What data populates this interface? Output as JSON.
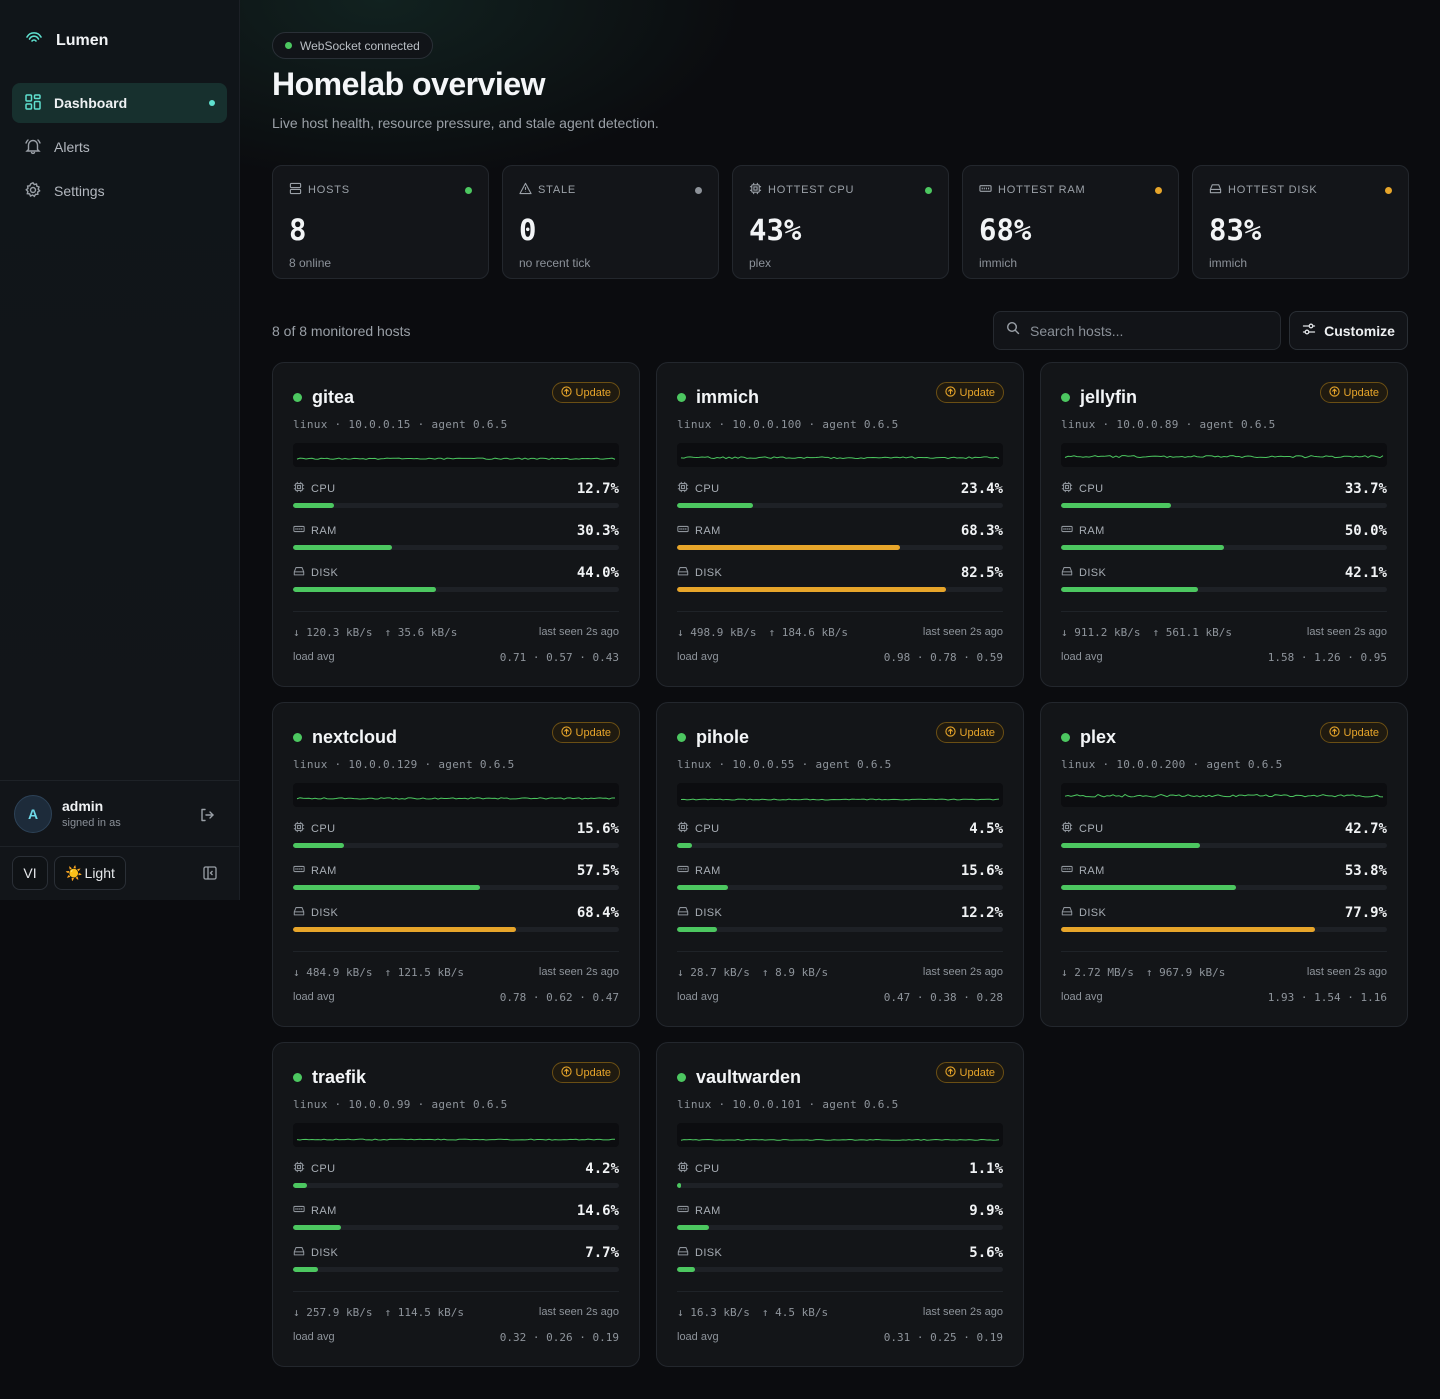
{
  "app": {
    "name": "Lumen"
  },
  "sidebar": {
    "items": [
      {
        "label": "Dashboard",
        "icon": "dashboard-icon",
        "active": true
      },
      {
        "label": "Alerts",
        "icon": "bell-icon",
        "active": false
      },
      {
        "label": "Settings",
        "icon": "gear-icon",
        "active": false
      }
    ],
    "user": {
      "initial": "A",
      "name": "admin",
      "sub": "signed in as"
    },
    "lang": "VI",
    "theme_icon": "☀️",
    "theme_label": "Light"
  },
  "header": {
    "ws_status": "WebSocket connected",
    "title": "Homelab overview",
    "subtitle": "Live host health, resource pressure, and stale agent detection."
  },
  "stats": [
    {
      "label": "HOSTS",
      "icon": "server-icon",
      "value": "8",
      "sub": "8 online",
      "dot": "#4cc760"
    },
    {
      "label": "STALE",
      "icon": "warning-icon",
      "value": "0",
      "sub": "no recent tick",
      "dot": "#8d9299"
    },
    {
      "label": "HOTTEST CPU",
      "icon": "cpu-icon",
      "value": "43%",
      "sub": "plex",
      "dot": "#4cc760"
    },
    {
      "label": "HOTTEST RAM",
      "icon": "memory-icon",
      "value": "68%",
      "sub": "immich",
      "dot": "#e7a52a"
    },
    {
      "label": "HOTTEST DISK",
      "icon": "disk-icon",
      "value": "83%",
      "sub": "immich",
      "dot": "#e7a52a"
    }
  ],
  "toolbar": {
    "count_label": "8 of 8 monitored hosts",
    "search_placeholder": "Search hosts...",
    "customize_label": "Customize"
  },
  "colors": {
    "ok": "#4cc760",
    "warn": "#e7a52a",
    "accent": "#5fe0cf"
  },
  "hosts": [
    {
      "name": "gitea",
      "meta": "linux · 10.0.0.15 · agent 0.6.5",
      "update_label": "Update",
      "cpu": 12.7,
      "cpu_label": "12.7%",
      "ram": 30.3,
      "ram_label": "30.3%",
      "disk": 44.0,
      "disk_label": "44.0%",
      "down": "↓ 120.3 kB/s",
      "up": "↑ 35.6 kB/s",
      "seen": "last seen 2s ago",
      "load_label": "load avg",
      "load": "0.71 · 0.57 · 0.43"
    },
    {
      "name": "immich",
      "meta": "linux · 10.0.0.100 · agent 0.6.5",
      "update_label": "Update",
      "cpu": 23.4,
      "cpu_label": "23.4%",
      "ram": 68.3,
      "ram_label": "68.3%",
      "disk": 82.5,
      "disk_label": "82.5%",
      "down": "↓ 498.9 kB/s",
      "up": "↑ 184.6 kB/s",
      "seen": "last seen 2s ago",
      "load_label": "load avg",
      "load": "0.98 · 0.78 · 0.59"
    },
    {
      "name": "jellyfin",
      "meta": "linux · 10.0.0.89 · agent 0.6.5",
      "update_label": "Update",
      "cpu": 33.7,
      "cpu_label": "33.7%",
      "ram": 50.0,
      "ram_label": "50.0%",
      "disk": 42.1,
      "disk_label": "42.1%",
      "down": "↓ 911.2 kB/s",
      "up": "↑ 561.1 kB/s",
      "seen": "last seen 2s ago",
      "load_label": "load avg",
      "load": "1.58 · 1.26 · 0.95"
    },
    {
      "name": "nextcloud",
      "meta": "linux · 10.0.0.129 · agent 0.6.5",
      "update_label": "Update",
      "cpu": 15.6,
      "cpu_label": "15.6%",
      "ram": 57.5,
      "ram_label": "57.5%",
      "disk": 68.4,
      "disk_label": "68.4%",
      "down": "↓ 484.9 kB/s",
      "up": "↑ 121.5 kB/s",
      "seen": "last seen 2s ago",
      "load_label": "load avg",
      "load": "0.78 · 0.62 · 0.47"
    },
    {
      "name": "pihole",
      "meta": "linux · 10.0.0.55 · agent 0.6.5",
      "update_label": "Update",
      "cpu": 4.5,
      "cpu_label": "4.5%",
      "ram": 15.6,
      "ram_label": "15.6%",
      "disk": 12.2,
      "disk_label": "12.2%",
      "down": "↓ 28.7 kB/s",
      "up": "↑ 8.9 kB/s",
      "seen": "last seen 2s ago",
      "load_label": "load avg",
      "load": "0.47 · 0.38 · 0.28"
    },
    {
      "name": "plex",
      "meta": "linux · 10.0.0.200 · agent 0.6.5",
      "update_label": "Update",
      "cpu": 42.7,
      "cpu_label": "42.7%",
      "ram": 53.8,
      "ram_label": "53.8%",
      "disk": 77.9,
      "disk_label": "77.9%",
      "down": "↓ 2.72 MB/s",
      "up": "↑ 967.9 kB/s",
      "seen": "last seen 2s ago",
      "load_label": "load avg",
      "load": "1.93 · 1.54 · 1.16"
    },
    {
      "name": "traefik",
      "meta": "linux · 10.0.0.99 · agent 0.6.5",
      "update_label": "Update",
      "cpu": 4.2,
      "cpu_label": "4.2%",
      "ram": 14.6,
      "ram_label": "14.6%",
      "disk": 7.7,
      "disk_label": "7.7%",
      "down": "↓ 257.9 kB/s",
      "up": "↑ 114.5 kB/s",
      "seen": "last seen 2s ago",
      "load_label": "load avg",
      "load": "0.32 · 0.26 · 0.19"
    },
    {
      "name": "vaultwarden",
      "meta": "linux · 10.0.0.101 · agent 0.6.5",
      "update_label": "Update",
      "cpu": 1.1,
      "cpu_label": "1.1%",
      "ram": 9.9,
      "ram_label": "9.9%",
      "disk": 5.6,
      "disk_label": "5.6%",
      "down": "↓ 16.3 kB/s",
      "up": "↑ 4.5 kB/s",
      "seen": "last seen 2s ago",
      "load_label": "load avg",
      "load": "0.31 · 0.25 · 0.19"
    }
  ]
}
